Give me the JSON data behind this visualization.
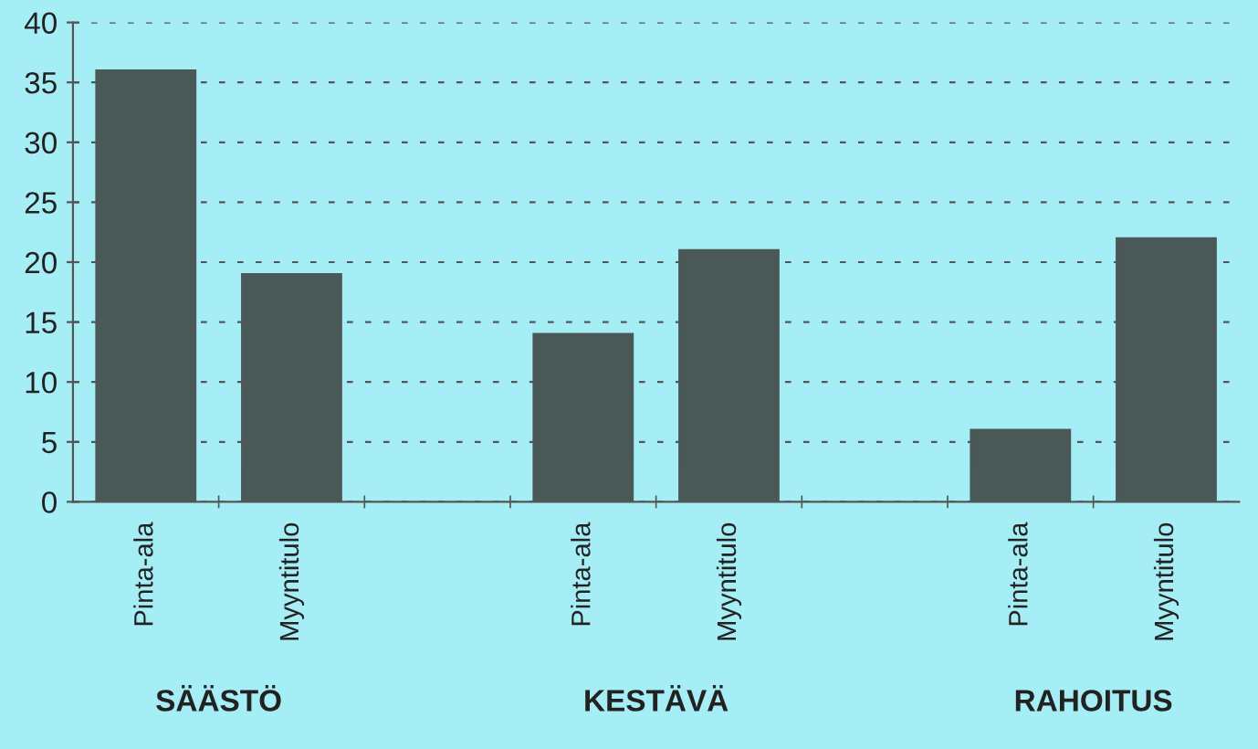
{
  "chart_data": {
    "type": "bar",
    "categories": [
      "Pinta-ala",
      "Myyntitulo",
      null,
      "Pinta-ala",
      "Myyntitulo",
      null,
      "Pinta-ala",
      "Myyntitulo"
    ],
    "values": [
      36,
      19,
      null,
      14,
      21,
      null,
      6,
      22
    ],
    "color": "#4a5858",
    "ylim": [
      0,
      40
    ],
    "yticks": [
      0,
      5,
      10,
      15,
      20,
      25,
      30,
      35,
      40
    ],
    "grid": "y",
    "legend": false,
    "annotations": [
      "SÄÄSTÖ",
      "KESTÄVÄ",
      "RAHOITUS"
    ]
  }
}
